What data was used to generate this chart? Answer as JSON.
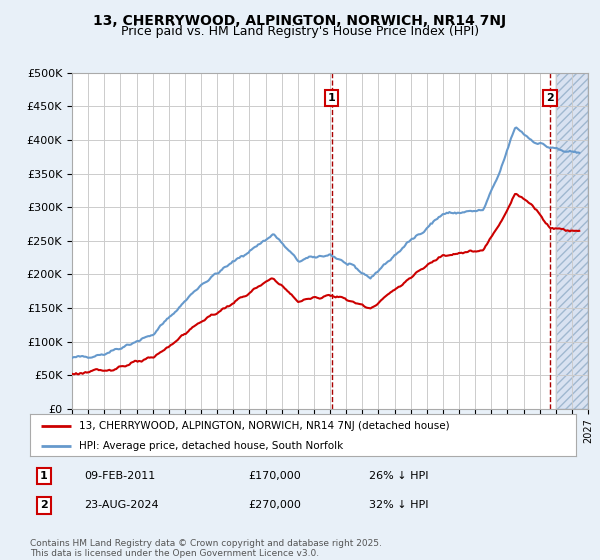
{
  "title1": "13, CHERRYWOOD, ALPINGTON, NORWICH, NR14 7NJ",
  "title2": "Price paid vs. HM Land Registry's House Price Index (HPI)",
  "legend1": "13, CHERRYWOOD, ALPINGTON, NORWICH, NR14 7NJ (detached house)",
  "legend2": "HPI: Average price, detached house, South Norfolk",
  "footer": "Contains HM Land Registry data © Crown copyright and database right 2025.\nThis data is licensed under the Open Government Licence v3.0.",
  "annotation1_label": "1",
  "annotation1_date": "09-FEB-2011",
  "annotation1_price": "£170,000",
  "annotation1_hpi": "26% ↓ HPI",
  "annotation2_label": "2",
  "annotation2_date": "23-AUG-2024",
  "annotation2_price": "£270,000",
  "annotation2_hpi": "32% ↓ HPI",
  "sale1_year": 2011.1,
  "sale1_value": 170000,
  "sale2_year": 2024.65,
  "sale2_value": 270000,
  "xmin": 1995,
  "xmax": 2027,
  "ymin": 0,
  "ymax": 500000,
  "yticks": [
    0,
    50000,
    100000,
    150000,
    200000,
    250000,
    300000,
    350000,
    400000,
    450000,
    500000
  ],
  "ytick_labels": [
    "£0",
    "£50K",
    "£100K",
    "£150K",
    "£200K",
    "£250K",
    "£300K",
    "£350K",
    "£400K",
    "£450K",
    "£500K"
  ],
  "bg_color": "#e8f0f8",
  "plot_bg": "#ffffff",
  "hpi_color": "#6699cc",
  "sale_color": "#cc0000",
  "grid_color": "#cccccc",
  "hatch_color": "#c0d0e8"
}
